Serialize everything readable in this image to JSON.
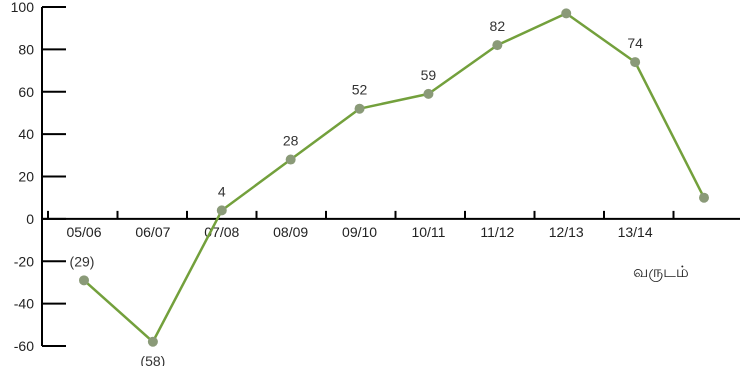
{
  "chart_data": {
    "type": "line",
    "title": "",
    "xlabel": "வருடம்",
    "ylabel": "",
    "categories": [
      "05/06",
      "06/07",
      "07/08",
      "08/09",
      "09/10",
      "10/11",
      "11/12",
      "12/13",
      "13/14",
      ""
    ],
    "series": [
      {
        "values": [
          -29,
          -58,
          4,
          28,
          52,
          59,
          82,
          97,
          74,
          10
        ],
        "labels": [
          "(29)",
          "(58)",
          "4",
          "28",
          "52",
          "59",
          "82",
          "",
          "74",
          ""
        ]
      }
    ],
    "ylim": [
      -60,
      100
    ],
    "yticks": [
      -60,
      -40,
      -20,
      0,
      20,
      40,
      60,
      80,
      100
    ],
    "grid": false,
    "line_color": "#73a03c",
    "marker_color": "#8a9a78"
  }
}
